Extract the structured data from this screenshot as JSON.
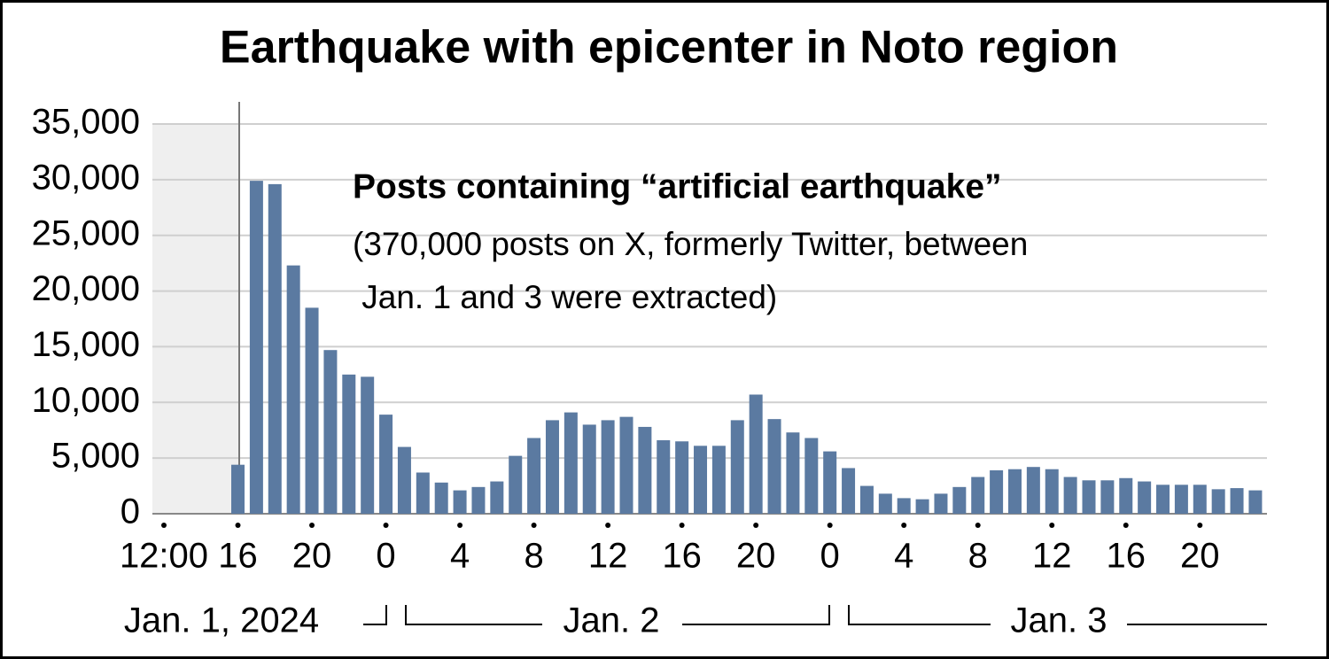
{
  "chart_data": {
    "type": "bar",
    "title": "Earthquake with epicenter in Noto region",
    "annotation_title": "Posts containing “artificial earthquake”",
    "annotation_lines": [
      "(370,000 posts on X, formerly Twitter, between",
      " Jan. 1 and 3 were extracted)"
    ],
    "categories": [
      "12:00",
      null,
      null,
      null,
      "16",
      null,
      null,
      null,
      "20",
      null,
      null,
      null,
      "0",
      null,
      null,
      null,
      "4",
      null,
      null,
      null,
      "8",
      null,
      null,
      null,
      "12",
      null,
      null,
      null,
      "16",
      null,
      null,
      null,
      "20",
      null,
      null,
      null,
      "0",
      null,
      null,
      null,
      "4",
      null,
      null,
      null,
      "8",
      null,
      null,
      null,
      "12",
      null,
      null,
      null,
      "16",
      null,
      null,
      null,
      "20",
      null,
      null,
      null
    ],
    "values": [
      null,
      null,
      null,
      null,
      4400,
      29900,
      29600,
      22300,
      18500,
      14700,
      12500,
      12300,
      8900,
      6000,
      3700,
      2800,
      2100,
      2400,
      2900,
      5200,
      6800,
      8400,
      9100,
      8000,
      8400,
      8700,
      7800,
      6600,
      6500,
      6100,
      6100,
      8400,
      10700,
      8500,
      7300,
      6800,
      5600,
      4100,
      2500,
      1800,
      1400,
      1300,
      1800,
      2400,
      3300,
      3900,
      4000,
      4200,
      4000,
      3300,
      3000,
      3000,
      3200,
      2900,
      2600,
      2600,
      2600,
      2200,
      2300,
      2100
    ],
    "date_labels": [
      "Jan. 1, 2024",
      "Jan. 2",
      "Jan. 3"
    ],
    "color": "#5b7aa1",
    "ylim": [
      0,
      35000
    ],
    "yticks": [
      0,
      {
        "value": 5000,
        "label": "5,000"
      },
      {
        "value": 10000,
        "label": "10,000"
      },
      {
        "value": 15000,
        "label": "15,000"
      },
      {
        "value": 20000,
        "label": "20,000"
      },
      {
        "value": 25000,
        "label": "25,000"
      },
      {
        "value": 30000,
        "label": "30,000"
      },
      {
        "value": 35000,
        "label": "35,000"
      }
    ],
    "grid": true
  }
}
